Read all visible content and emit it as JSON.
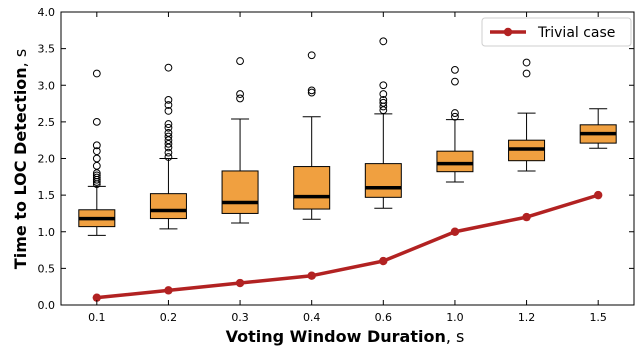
{
  "chart_data": {
    "type": "box",
    "x": {
      "label_bold": "Voting Window Duration",
      "label_unit": ", s",
      "categories": [
        "0.1",
        "0.2",
        "0.3",
        "0.4",
        "0.6",
        "1.0",
        "1.2",
        "1.5"
      ]
    },
    "y": {
      "label_bold": "Time to LOC Detection",
      "label_unit": ", s",
      "range": [
        0.0,
        4.0
      ],
      "ticks": [
        "0.0",
        "0.5",
        "1.0",
        "1.5",
        "2.0",
        "2.5",
        "3.0",
        "3.5",
        "4.0"
      ]
    },
    "grid": false,
    "box_color": "#f0a040",
    "median_color": "#000000",
    "boxes": [
      {
        "category": "0.1",
        "whisker_low": 0.95,
        "q1": 1.07,
        "median": 1.18,
        "q3": 1.3,
        "whisker_high": 1.62,
        "fliers": [
          1.65,
          1.68,
          1.71,
          1.74,
          1.77,
          1.8,
          1.9,
          2.0,
          2.1,
          2.18,
          2.5,
          3.16
        ]
      },
      {
        "category": "0.2",
        "whisker_low": 1.04,
        "q1": 1.18,
        "median": 1.29,
        "q3": 1.52,
        "whisker_high": 2.0,
        "fliers": [
          2.02,
          2.08,
          2.15,
          2.2,
          2.25,
          2.3,
          2.35,
          2.42,
          2.47,
          2.65,
          2.73,
          2.8,
          3.24
        ]
      },
      {
        "category": "0.3",
        "whisker_low": 1.12,
        "q1": 1.25,
        "median": 1.4,
        "q3": 1.83,
        "whisker_high": 2.54,
        "fliers": [
          2.82,
          2.88,
          3.33
        ]
      },
      {
        "category": "0.4",
        "whisker_low": 1.17,
        "q1": 1.31,
        "median": 1.48,
        "q3": 1.89,
        "whisker_high": 2.57,
        "fliers": [
          2.9,
          2.93,
          3.41
        ]
      },
      {
        "category": "0.6",
        "whisker_low": 1.32,
        "q1": 1.47,
        "median": 1.6,
        "q3": 1.93,
        "whisker_high": 2.61,
        "fliers": [
          2.66,
          2.71,
          2.76,
          2.8,
          2.88,
          3.0,
          3.6
        ]
      },
      {
        "category": "1.0",
        "whisker_low": 1.68,
        "q1": 1.82,
        "median": 1.93,
        "q3": 2.1,
        "whisker_high": 2.53,
        "fliers": [
          2.57,
          2.62,
          3.05,
          3.21
        ]
      },
      {
        "category": "1.2",
        "whisker_low": 1.83,
        "q1": 1.97,
        "median": 2.13,
        "q3": 2.25,
        "whisker_high": 2.62,
        "fliers": [
          3.16,
          3.31
        ]
      },
      {
        "category": "1.5",
        "whisker_low": 2.14,
        "q1": 2.21,
        "median": 2.34,
        "q3": 2.46,
        "whisker_high": 2.68,
        "fliers": []
      }
    ],
    "series": [
      {
        "name": "Trivial case",
        "type": "line",
        "color": "#b22222",
        "values": [
          0.1,
          0.2,
          0.3,
          0.4,
          0.6,
          1.0,
          1.2,
          1.5
        ]
      }
    ],
    "legend": {
      "position": "top-right"
    }
  }
}
